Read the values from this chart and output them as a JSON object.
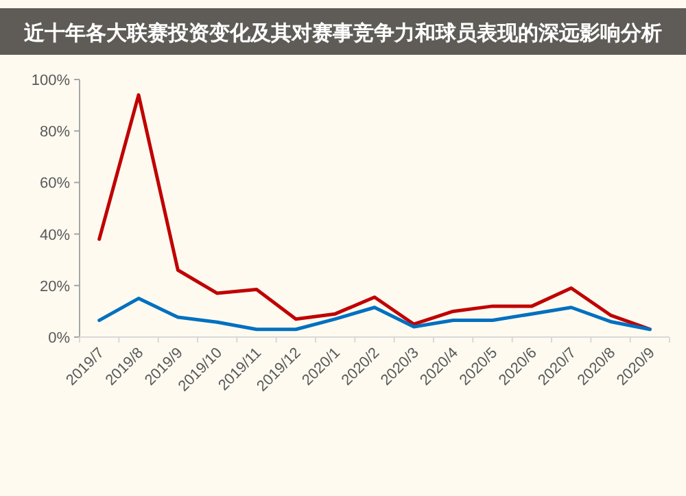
{
  "chart_data": {
    "type": "line",
    "title": "近十年各大联赛投资变化及其对赛事竞争力和球员表现的深远影响分析",
    "categories": [
      "2019/7",
      "2019/8",
      "2019/9",
      "2019/10",
      "2019/11",
      "2019/12",
      "2020/1",
      "2020/2",
      "2020/3",
      "2020/4",
      "2020/5",
      "2020/6",
      "2020/7",
      "2020/8",
      "2020/9"
    ],
    "series": [
      {
        "color": "#c00000",
        "values": [
          38,
          94,
          26,
          17,
          18.5,
          7,
          9,
          15.5,
          5,
          10,
          12,
          12,
          19,
          8.5,
          3
        ]
      },
      {
        "color": "#0070c0",
        "values": [
          6.5,
          15,
          7.7,
          5.8,
          3,
          3,
          7,
          11.5,
          4,
          6.5,
          6.5,
          9,
          11.5,
          6,
          3
        ]
      }
    ],
    "ylim": [
      0,
      100
    ],
    "yticks": [
      {
        "value": 0,
        "label": "0%"
      },
      {
        "value": 20,
        "label": "20%"
      },
      {
        "value": 40,
        "label": "40%"
      },
      {
        "value": 60,
        "label": "60%"
      },
      {
        "value": 80,
        "label": "80%"
      },
      {
        "value": 100,
        "label": "100%"
      }
    ],
    "grid": false
  }
}
